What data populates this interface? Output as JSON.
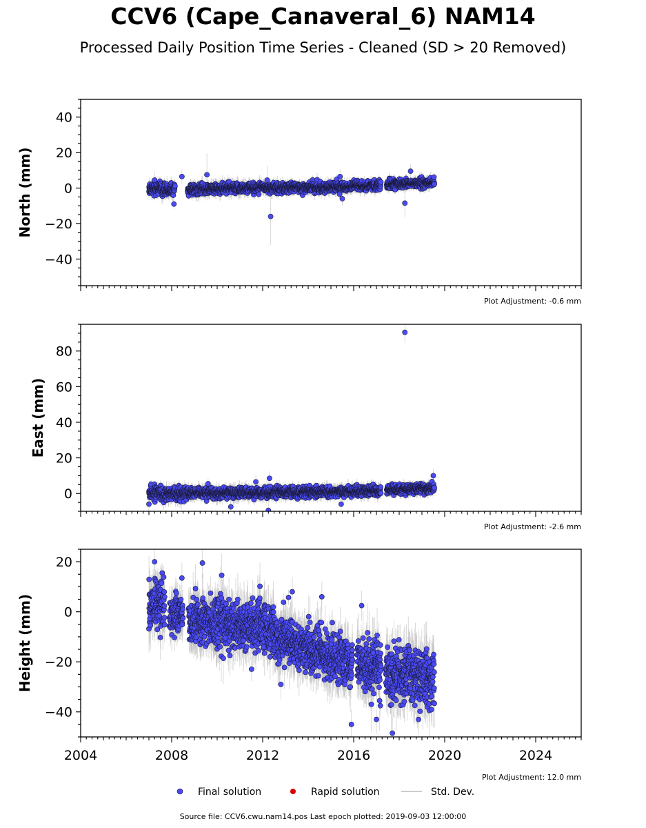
{
  "title": "CCV6 (Cape_Canaveral_6) NAM14",
  "subtitle": "Processed Daily Position Time Series - Cleaned (SD > 20 Removed)",
  "footer": "Source file: CCV6.cwu.nam14.pos  Last epoch plotted: 2019-09-03 12:00:00",
  "colors": {
    "final": "#4a4af5",
    "final_edge": "#1a1a3a",
    "rapid": "#dd0000",
    "stddev": "#bbbbbb"
  },
  "legend": [
    {
      "label": "Final solution",
      "kind": "final"
    },
    {
      "label": "Rapid solution",
      "kind": "rapid"
    },
    {
      "label": "Std. Dev.",
      "kind": "stddev"
    }
  ],
  "chart_data": [
    {
      "type": "scatter",
      "name": "north",
      "ylabel": "North (mm)",
      "xlim": [
        2004.0,
        2026.0
      ],
      "ylim": [
        -55,
        50
      ],
      "yticks": [
        -40,
        -20,
        0,
        20,
        40
      ],
      "adjustment": "Plot Adjustment: -0.6 mm",
      "segments": [
        {
          "start": 2007.0,
          "end": 2007.55,
          "center": [
            0.0,
            0.0
          ],
          "spread": 1.8,
          "err": 2.5
        },
        {
          "start": 2007.55,
          "end": 2008.15,
          "center": [
            -1.0,
            -1.0
          ],
          "spread": 1.5,
          "err": 2.5
        },
        {
          "start": 2008.7,
          "end": 2012.3,
          "center": [
            -1.0,
            0.5
          ],
          "spread": 1.4,
          "err": 2.5
        },
        {
          "start": 2012.3,
          "end": 2015.0,
          "center": [
            0.0,
            0.5
          ],
          "spread": 1.3,
          "err": 2.2
        },
        {
          "start": 2015.0,
          "end": 2017.2,
          "center": [
            0.5,
            1.5
          ],
          "spread": 1.3,
          "err": 2.2
        },
        {
          "start": 2017.45,
          "end": 2019.55,
          "center": [
            2.0,
            3.0
          ],
          "spread": 1.2,
          "err": 2.0
        }
      ],
      "outliers": [
        {
          "x": 2007.25,
          "y": 4.5,
          "err": 5
        },
        {
          "x": 2008.1,
          "y": -9.0,
          "err": 3
        },
        {
          "x": 2008.45,
          "y": 6.5,
          "err": 4
        },
        {
          "x": 2009.55,
          "y": 7.5,
          "err": 12
        },
        {
          "x": 2012.35,
          "y": -16.0,
          "err": 16
        },
        {
          "x": 2012.2,
          "y": 4.5,
          "err": 8
        },
        {
          "x": 2015.4,
          "y": 6.5,
          "err": 4
        },
        {
          "x": 2015.5,
          "y": -6.0,
          "err": 4
        },
        {
          "x": 2018.25,
          "y": -8.5,
          "err": 8
        },
        {
          "x": 2018.5,
          "y": 9.5,
          "err": 4
        }
      ]
    },
    {
      "type": "scatter",
      "name": "east",
      "ylabel": "East (mm)",
      "xlim": [
        2004.0,
        2026.0
      ],
      "ylim": [
        -10,
        95
      ],
      "yticks": [
        0,
        20,
        40,
        60,
        80
      ],
      "adjustment": "Plot Adjustment: -2.6 mm",
      "segments": [
        {
          "start": 2007.0,
          "end": 2008.7,
          "center": [
            0.0,
            0.0
          ],
          "spread": 1.8,
          "err": 2.5
        },
        {
          "start": 2008.7,
          "end": 2012.3,
          "center": [
            0.0,
            0.5
          ],
          "spread": 1.4,
          "err": 2.5
        },
        {
          "start": 2012.3,
          "end": 2015.0,
          "center": [
            0.5,
            1.0
          ],
          "spread": 1.3,
          "err": 2.2
        },
        {
          "start": 2015.0,
          "end": 2017.2,
          "center": [
            1.0,
            1.5
          ],
          "spread": 1.3,
          "err": 2.2
        },
        {
          "start": 2017.45,
          "end": 2019.55,
          "center": [
            2.0,
            3.0
          ],
          "spread": 1.2,
          "err": 2.0
        }
      ],
      "outliers": [
        {
          "x": 2018.25,
          "y": 90.5,
          "err": 6
        },
        {
          "x": 2012.25,
          "y": -9.5,
          "err": 4
        },
        {
          "x": 2012.3,
          "y": 8.5,
          "err": 4
        },
        {
          "x": 2009.6,
          "y": 5.5,
          "err": 3
        },
        {
          "x": 2007.0,
          "y": -6.0,
          "err": 6
        },
        {
          "x": 2010.6,
          "y": -7.5,
          "err": 3
        },
        {
          "x": 2019.5,
          "y": 10.0,
          "err": 4
        },
        {
          "x": 2015.45,
          "y": -6.0,
          "err": 3
        },
        {
          "x": 2011.7,
          "y": 6.5,
          "err": 4
        }
      ]
    },
    {
      "type": "scatter",
      "name": "height",
      "ylabel": "Height (mm)",
      "xlim": [
        2004.0,
        2026.0
      ],
      "ylim": [
        -50,
        25
      ],
      "yticks": [
        -40,
        -20,
        0,
        20
      ],
      "xticks": [
        2004,
        2008,
        2012,
        2016,
        2020,
        2024
      ],
      "adjustment": "Plot Adjustment: 12.0 mm",
      "segments": [
        {
          "start": 2007.0,
          "end": 2007.7,
          "center": [
            3.0,
            3.0
          ],
          "spread": 5.0,
          "err": 6
        },
        {
          "start": 2007.9,
          "end": 2008.5,
          "center": [
            -1.0,
            -1.0
          ],
          "spread": 3.5,
          "err": 5
        },
        {
          "start": 2008.75,
          "end": 2012.5,
          "center": [
            -3.0,
            -7.0
          ],
          "spread": 5.0,
          "err": 6
        },
        {
          "start": 2012.5,
          "end": 2015.0,
          "center": [
            -9.0,
            -18.0
          ],
          "spread": 4.5,
          "err": 6
        },
        {
          "start": 2015.0,
          "end": 2015.95,
          "center": [
            -17.0,
            -21.0
          ],
          "spread": 4.5,
          "err": 6
        },
        {
          "start": 2016.15,
          "end": 2017.2,
          "center": [
            -21.0,
            -24.0
          ],
          "spread": 5.0,
          "err": 7
        },
        {
          "start": 2017.4,
          "end": 2019.55,
          "center": [
            -25.0,
            -27.0
          ],
          "spread": 5.5,
          "err": 7
        }
      ],
      "outliers": [
        {
          "x": 2007.25,
          "y": 20.0,
          "err": 6
        },
        {
          "x": 2009.35,
          "y": 19.5,
          "err": 6
        },
        {
          "x": 2008.45,
          "y": 13.5,
          "err": 6
        },
        {
          "x": 2015.9,
          "y": -45.0,
          "err": 6
        },
        {
          "x": 2016.35,
          "y": 2.5,
          "err": 6
        },
        {
          "x": 2017.7,
          "y": -48.5,
          "err": 6
        },
        {
          "x": 2018.85,
          "y": -43.0,
          "err": 6
        },
        {
          "x": 2013.3,
          "y": 8.0,
          "err": 6
        },
        {
          "x": 2014.6,
          "y": 6.0,
          "err": 6
        },
        {
          "x": 2012.8,
          "y": -29.0,
          "err": 6
        },
        {
          "x": 2017.0,
          "y": -43.0,
          "err": 6
        }
      ]
    }
  ]
}
